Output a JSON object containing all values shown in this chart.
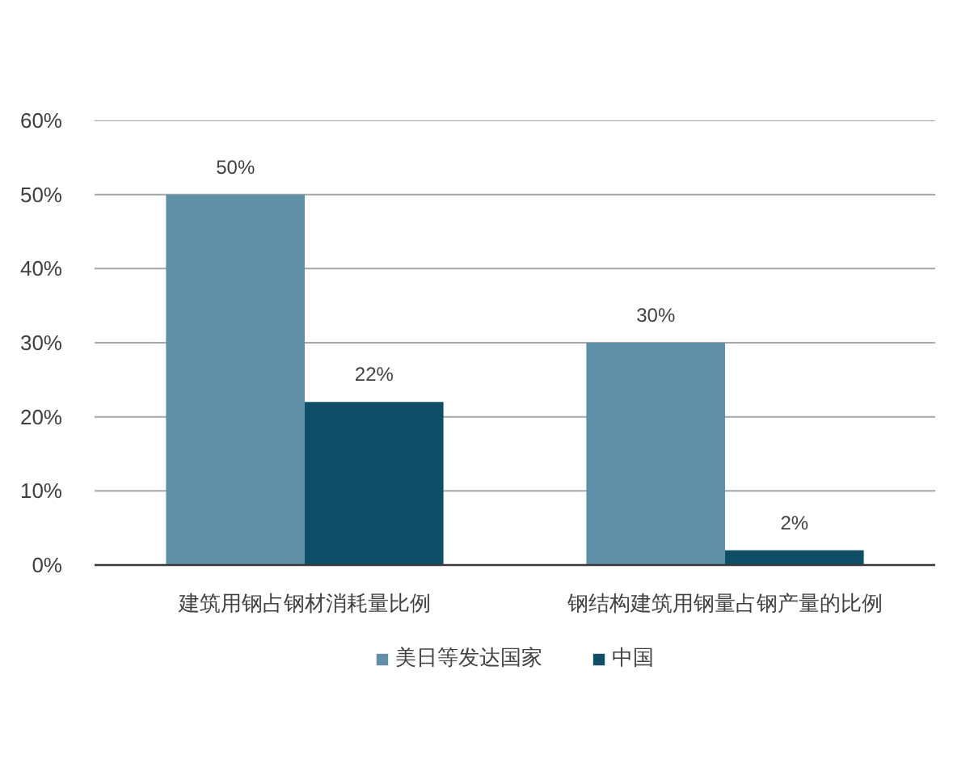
{
  "chart_data": {
    "type": "bar",
    "categories": [
      "建筑用钢占钢材消耗量比例",
      "钢结构建筑用钢量占钢产量的比例"
    ],
    "series": [
      {
        "name": "美日等发达国家",
        "color": "#5f90a8",
        "values": [
          50,
          30
        ],
        "value_labels": [
          "50%",
          "30%"
        ]
      },
      {
        "name": "中国",
        "color": "#0e4e66",
        "values": [
          22,
          2
        ],
        "value_labels": [
          "22%",
          "2%"
        ]
      }
    ],
    "ylim": [
      0,
      60
    ],
    "yticks": [
      {
        "value": 0,
        "label": "0%"
      },
      {
        "value": 10,
        "label": "10%"
      },
      {
        "value": 20,
        "label": "20%"
      },
      {
        "value": 30,
        "label": "30%"
      },
      {
        "value": 40,
        "label": "40%"
      },
      {
        "value": 50,
        "label": "50%"
      },
      {
        "value": 60,
        "label": "60%"
      }
    ],
    "grid": "y",
    "legend": "bottom"
  }
}
